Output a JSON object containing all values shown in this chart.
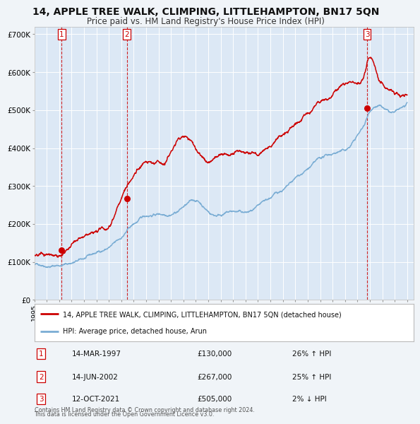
{
  "title": "14, APPLE TREE WALK, CLIMPING, LITTLEHAMPTON, BN17 5QN",
  "subtitle": "Price paid vs. HM Land Registry's House Price Index (HPI)",
  "background_color": "#f0f4f8",
  "plot_bg_color": "#dce8f5",
  "grid_color": "#ffffff",
  "xlim": [
    1995.0,
    2025.5
  ],
  "ylim": [
    0,
    720000
  ],
  "yticks": [
    0,
    100000,
    200000,
    300000,
    400000,
    500000,
    600000,
    700000
  ],
  "ytick_labels": [
    "£0",
    "£100K",
    "£200K",
    "£300K",
    "£400K",
    "£500K",
    "£600K",
    "£700K"
  ],
  "xticks": [
    1995,
    1996,
    1997,
    1998,
    1999,
    2000,
    2001,
    2002,
    2003,
    2004,
    2005,
    2006,
    2007,
    2008,
    2009,
    2010,
    2011,
    2012,
    2013,
    2014,
    2015,
    2016,
    2017,
    2018,
    2019,
    2020,
    2021,
    2022,
    2023,
    2024,
    2025
  ],
  "sale_color": "#cc0000",
  "hpi_color": "#7aadd4",
  "marker_color": "#cc0000",
  "vline_color": "#cc0000",
  "purchases": [
    {
      "year": 1997.2,
      "price": 130000,
      "label": "1",
      "date": "14-MAR-1997",
      "hpi_pct": "26%",
      "hpi_dir": "↑"
    },
    {
      "year": 2002.45,
      "price": 267000,
      "label": "2",
      "date": "14-JUN-2002",
      "hpi_pct": "25%",
      "hpi_dir": "↑"
    },
    {
      "year": 2021.78,
      "price": 505000,
      "label": "3",
      "date": "12-OCT-2021",
      "hpi_pct": "2%",
      "hpi_dir": "↓"
    }
  ],
  "legend_line1": "14, APPLE TREE WALK, CLIMPING, LITTLEHAMPTON, BN17 5QN (detached house)",
  "legend_line2": "HPI: Average price, detached house, Arun",
  "footer1": "Contains HM Land Registry data © Crown copyright and database right 2024.",
  "footer2": "This data is licensed under the Open Government Licence v3.0.",
  "hpi_data_x": [
    1995.0,
    1995.5,
    1996.0,
    1996.5,
    1997.0,
    1997.5,
    1998.0,
    1998.5,
    1999.0,
    1999.5,
    2000.0,
    2000.5,
    2001.0,
    2001.5,
    2002.0,
    2002.5,
    2003.0,
    2003.5,
    2004.0,
    2004.5,
    2005.0,
    2005.5,
    2006.0,
    2006.5,
    2007.0,
    2007.5,
    2008.0,
    2008.5,
    2009.0,
    2009.5,
    2010.0,
    2010.5,
    2011.0,
    2011.5,
    2012.0,
    2012.5,
    2013.0,
    2013.5,
    2014.0,
    2014.5,
    2015.0,
    2015.5,
    2016.0,
    2016.5,
    2017.0,
    2017.5,
    2018.0,
    2018.5,
    2019.0,
    2019.5,
    2020.0,
    2020.5,
    2021.0,
    2021.5,
    2022.0,
    2022.5,
    2023.0,
    2023.5,
    2024.0,
    2024.5,
    2025.0
  ],
  "hpi_data_y": [
    92000,
    95000,
    97000,
    99000,
    103000,
    107000,
    112000,
    117000,
    122000,
    128000,
    135000,
    143000,
    152000,
    162000,
    175000,
    195000,
    210000,
    222000,
    232000,
    238000,
    242000,
    245000,
    252000,
    262000,
    275000,
    285000,
    290000,
    280000,
    265000,
    258000,
    263000,
    268000,
    270000,
    268000,
    265000,
    268000,
    272000,
    280000,
    290000,
    302000,
    312000,
    322000,
    335000,
    348000,
    360000,
    372000,
    382000,
    388000,
    395000,
    402000,
    405000,
    420000,
    445000,
    470000,
    510000,
    530000,
    525000,
    510000,
    505000,
    512000,
    520000
  ],
  "price_data_x": [
    1995.0,
    1995.5,
    1996.0,
    1996.5,
    1997.0,
    1997.5,
    1998.0,
    1998.5,
    1999.0,
    1999.5,
    2000.0,
    2000.5,
    2001.0,
    2001.5,
    2002.0,
    2002.5,
    2003.0,
    2003.5,
    2004.0,
    2004.5,
    2005.0,
    2005.5,
    2006.0,
    2006.5,
    2007.0,
    2007.5,
    2008.0,
    2008.5,
    2009.0,
    2009.5,
    2010.0,
    2010.5,
    2011.0,
    2011.5,
    2012.0,
    2012.5,
    2013.0,
    2013.5,
    2014.0,
    2014.5,
    2015.0,
    2015.5,
    2016.0,
    2016.5,
    2017.0,
    2017.5,
    2018.0,
    2018.5,
    2019.0,
    2019.5,
    2020.0,
    2020.5,
    2021.0,
    2021.5,
    2022.0,
    2022.5,
    2023.0,
    2023.5,
    2024.0,
    2024.5,
    2025.0
  ],
  "price_data_y": [
    118000,
    120000,
    122000,
    125000,
    130000,
    138000,
    148000,
    158000,
    162000,
    165000,
    168000,
    172000,
    182000,
    225000,
    267000,
    300000,
    325000,
    350000,
    362000,
    355000,
    355000,
    360000,
    390000,
    420000,
    435000,
    430000,
    405000,
    385000,
    370000,
    380000,
    390000,
    395000,
    395000,
    390000,
    385000,
    390000,
    395000,
    405000,
    415000,
    430000,
    440000,
    450000,
    465000,
    480000,
    495000,
    510000,
    520000,
    530000,
    540000,
    548000,
    550000,
    558000,
    565000,
    580000,
    630000,
    600000,
    575000,
    555000,
    545000,
    540000,
    540000
  ]
}
